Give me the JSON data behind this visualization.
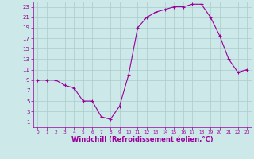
{
  "x": [
    0,
    1,
    2,
    3,
    4,
    5,
    6,
    7,
    8,
    9,
    10,
    11,
    12,
    13,
    14,
    15,
    16,
    17,
    18,
    19,
    20,
    21,
    22,
    23
  ],
  "y": [
    9,
    9,
    9,
    8,
    7.5,
    5,
    5,
    2,
    1.5,
    4,
    10,
    19,
    21,
    22,
    22.5,
    23,
    23,
    23.5,
    23.5,
    21,
    17.5,
    13,
    10.5,
    11
  ],
  "line_color": "#990099",
  "marker": "+",
  "marker_color": "#990099",
  "background_color": "#cce8e8",
  "grid_color": "#aacccc",
  "xlabel": "Windchill (Refroidissement éolien,°C)",
  "xlabel_color": "#990099",
  "yticks": [
    1,
    3,
    5,
    7,
    9,
    11,
    13,
    15,
    17,
    19,
    21,
    23
  ],
  "xticks": [
    0,
    1,
    2,
    3,
    4,
    5,
    6,
    7,
    8,
    9,
    10,
    11,
    12,
    13,
    14,
    15,
    16,
    17,
    18,
    19,
    20,
    21,
    22,
    23
  ],
  "ylim": [
    0,
    24
  ],
  "xlim": [
    -0.5,
    23.5
  ],
  "tick_color": "#990099",
  "axis_color": "#990099",
  "linewidth": 0.8,
  "markersize": 3.5,
  "tick_fontsize_x": 4.2,
  "tick_fontsize_y": 5.0,
  "xlabel_fontsize": 6.0
}
